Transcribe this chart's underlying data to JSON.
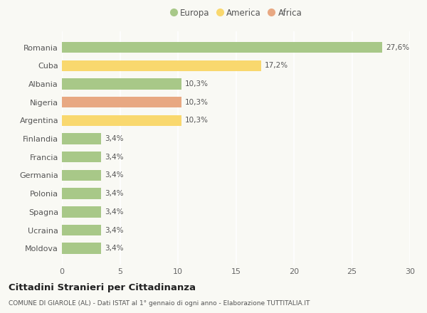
{
  "countries": [
    "Romania",
    "Cuba",
    "Albania",
    "Nigeria",
    "Argentina",
    "Finlandia",
    "Francia",
    "Germania",
    "Polonia",
    "Spagna",
    "Ucraina",
    "Moldova"
  ],
  "values": [
    27.6,
    17.2,
    10.3,
    10.3,
    10.3,
    3.4,
    3.4,
    3.4,
    3.4,
    3.4,
    3.4,
    3.4
  ],
  "labels": [
    "27,6%",
    "17,2%",
    "10,3%",
    "10,3%",
    "10,3%",
    "3,4%",
    "3,4%",
    "3,4%",
    "3,4%",
    "3,4%",
    "3,4%",
    "3,4%"
  ],
  "colors": [
    "#a8c888",
    "#f9d86e",
    "#a8c888",
    "#e8a882",
    "#f9d86e",
    "#a8c888",
    "#a8c888",
    "#a8c888",
    "#a8c888",
    "#a8c888",
    "#a8c888",
    "#a8c888"
  ],
  "legend": [
    {
      "label": "Europa",
      "color": "#a8c888"
    },
    {
      "label": "America",
      "color": "#f9d86e"
    },
    {
      "label": "Africa",
      "color": "#e8a882"
    }
  ],
  "xlim": [
    0,
    30
  ],
  "xticks": [
    0,
    5,
    10,
    15,
    20,
    25,
    30
  ],
  "title": "Cittadini Stranieri per Cittadinanza",
  "subtitle": "COMUNE DI GIAROLE (AL) - Dati ISTAT al 1° gennaio di ogni anno - Elaborazione TUTTITALIA.IT",
  "background_color": "#f9f9f4",
  "grid_color": "#ffffff",
  "bar_height": 0.6
}
